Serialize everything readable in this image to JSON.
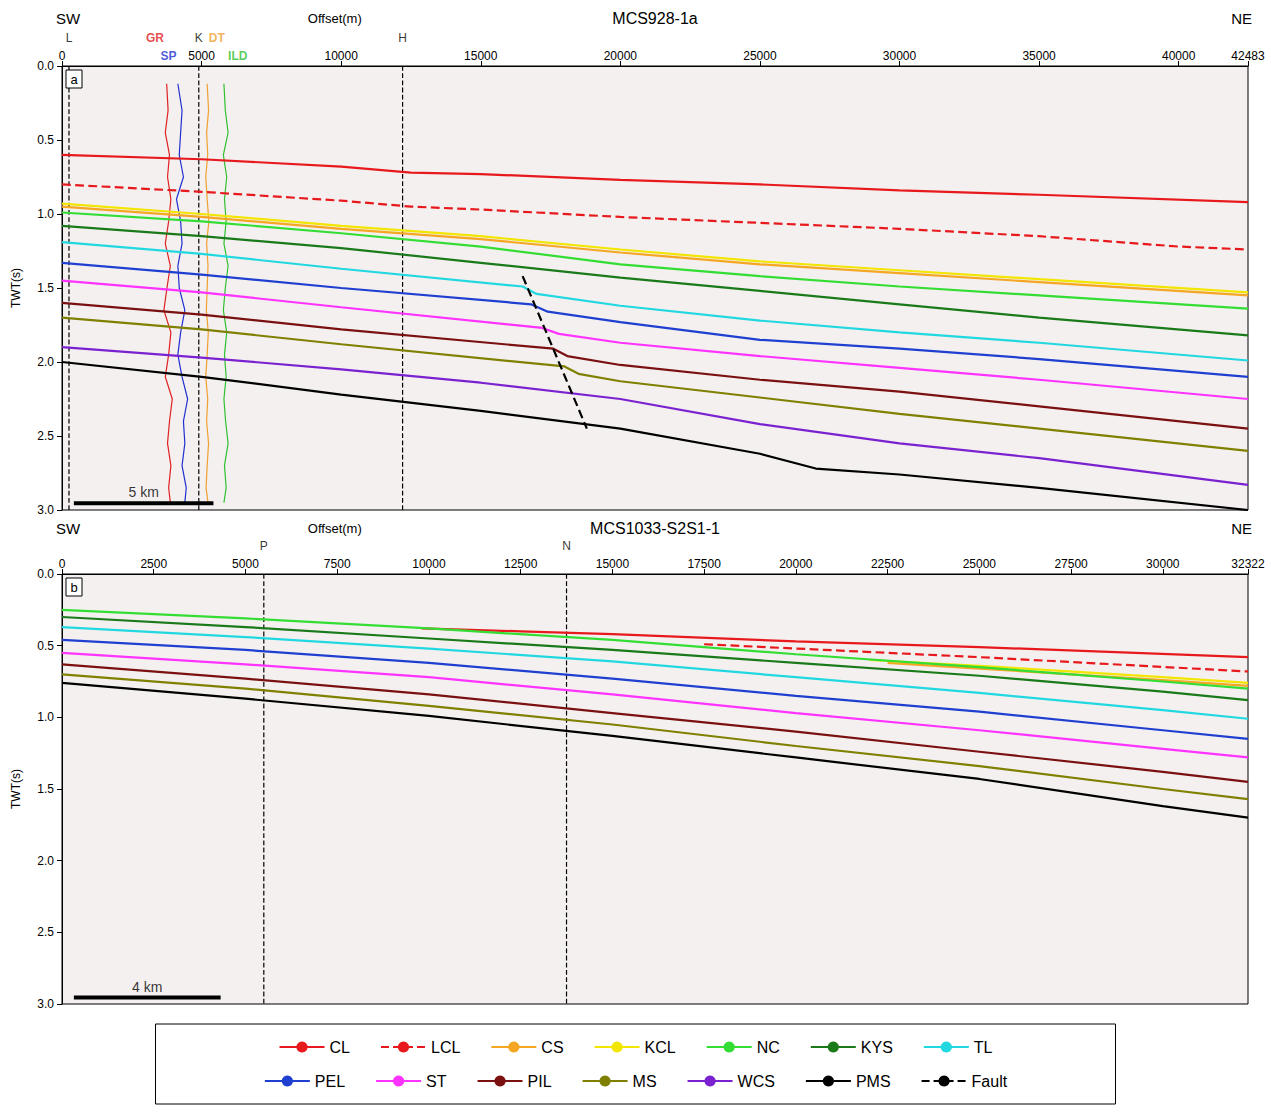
{
  "chart_data": [
    {
      "type": "line",
      "title": "MCS928-1a",
      "panel": "a",
      "x_label": "Offset(m)",
      "y_label": "TWT(s)",
      "end_labels": [
        "SW",
        "NE"
      ],
      "xlim": [
        0,
        42483
      ],
      "xticks": [
        0,
        5000,
        10000,
        15000,
        20000,
        25000,
        30000,
        35000,
        40000,
        42483
      ],
      "ylim": [
        0,
        3
      ],
      "yticks": [
        {
          "value": 0,
          "label": "0.0"
        },
        0.5,
        {
          "value": 1,
          "label": "1.0"
        },
        1.5,
        {
          "value": 2,
          "label": "2.0"
        },
        2.5,
        {
          "value": 3,
          "label": "3.0"
        }
      ],
      "grid": false,
      "legend": "bottom",
      "wells": [
        {
          "name": "L",
          "x": 250
        },
        {
          "name": "K",
          "x": 4900
        },
        {
          "name": "H",
          "x": 12200
        }
      ],
      "logs": [
        {
          "name": "GR",
          "color": "#e02020",
          "x": [
            3750,
            3800,
            3700,
            3850,
            3780,
            3900,
            3820,
            3700,
            3880,
            3760,
            3650,
            3900,
            3820,
            3700,
            3950,
            3850,
            3780,
            3900,
            3820,
            3880
          ],
          "values": [
            0.12,
            0.3,
            0.45,
            0.6,
            0.75,
            0.9,
            1.05,
            1.2,
            1.35,
            1.5,
            1.65,
            1.8,
            1.95,
            2.1,
            2.25,
            2.4,
            2.55,
            2.7,
            2.85,
            2.95
          ]
        },
        {
          "name": "SP",
          "color": "#2030d0",
          "x": [
            4150,
            4300,
            4250,
            4200,
            4350,
            4100,
            4250,
            4300,
            4150,
            4200,
            4400,
            4250,
            4150,
            4300,
            4500,
            4350,
            4400,
            4300,
            4450,
            4400
          ],
          "values": [
            0.12,
            0.3,
            0.45,
            0.6,
            0.75,
            0.9,
            1.05,
            1.2,
            1.35,
            1.5,
            1.65,
            1.8,
            1.95,
            2.1,
            2.25,
            2.4,
            2.55,
            2.7,
            2.85,
            2.95
          ]
        },
        {
          "name": "DT",
          "color": "#f0a030",
          "x": [
            5200,
            5250,
            5180,
            5220,
            5150,
            5200,
            5260,
            5180,
            5230,
            5200,
            5170,
            5240,
            5200,
            5150,
            5220,
            5180,
            5250,
            5200,
            5160,
            5230
          ],
          "values": [
            0.12,
            0.3,
            0.45,
            0.6,
            0.75,
            0.9,
            1.05,
            1.2,
            1.35,
            1.5,
            1.65,
            1.8,
            1.95,
            2.1,
            2.25,
            2.4,
            2.55,
            2.7,
            2.85,
            2.95
          ]
        },
        {
          "name": "ILD",
          "color": "#30c030",
          "x": [
            5800,
            5850,
            5950,
            5780,
            5900,
            5820,
            5880,
            5800,
            5950,
            5850,
            5780,
            5900,
            5820,
            5880,
            5800,
            5860,
            5950,
            5820,
            5880,
            5800
          ],
          "values": [
            0.12,
            0.3,
            0.45,
            0.6,
            0.75,
            0.9,
            1.05,
            1.2,
            1.35,
            1.5,
            1.65,
            1.8,
            1.95,
            2.1,
            2.25,
            2.4,
            2.55,
            2.7,
            2.85,
            2.95
          ]
        }
      ],
      "scale_bar": {
        "length": 5000,
        "label": "5 km"
      },
      "series": [
        {
          "name": "CL",
          "color": "#e8191c",
          "line_style": "solid",
          "x": [
            0,
            5000,
            10000,
            12500,
            15000,
            20000,
            25000,
            30000,
            35000,
            42483
          ],
          "values": [
            0.6,
            0.63,
            0.68,
            0.72,
            0.73,
            0.77,
            0.8,
            0.84,
            0.87,
            0.92
          ]
        },
        {
          "name": "LCL",
          "color": "#e8191c",
          "line_style": "dashed",
          "x": [
            0,
            5000,
            10000,
            12500,
            15000,
            20000,
            25000,
            30000,
            35000,
            40000,
            42483
          ],
          "values": [
            0.8,
            0.85,
            0.91,
            0.95,
            0.97,
            1.02,
            1.06,
            1.1,
            1.15,
            1.22,
            1.24
          ]
        },
        {
          "name": "CS",
          "color": "#f5a623",
          "line_style": "solid",
          "x": [
            0,
            5000,
            10000,
            15000,
            20000,
            25000,
            30000,
            35000,
            42483
          ],
          "values": [
            0.95,
            1.02,
            1.1,
            1.17,
            1.26,
            1.34,
            1.4,
            1.46,
            1.55
          ]
        },
        {
          "name": "KCL",
          "color": "#f2e600",
          "line_style": "solid",
          "x": [
            0,
            5000,
            10000,
            15000,
            20000,
            25000,
            30000,
            35000,
            42483
          ],
          "values": [
            0.93,
            1.0,
            1.08,
            1.15,
            1.24,
            1.32,
            1.38,
            1.44,
            1.53
          ]
        },
        {
          "name": "NC",
          "color": "#33dd33",
          "line_style": "solid",
          "x": [
            0,
            5000,
            10000,
            15000,
            20000,
            25000,
            30000,
            35000,
            42483
          ],
          "values": [
            0.99,
            1.05,
            1.13,
            1.22,
            1.34,
            1.42,
            1.49,
            1.55,
            1.64
          ]
        },
        {
          "name": "KYS",
          "color": "#1a7a1a",
          "line_style": "solid",
          "x": [
            0,
            5000,
            10000,
            15000,
            20000,
            25000,
            30000,
            35000,
            42483
          ],
          "values": [
            1.08,
            1.15,
            1.23,
            1.33,
            1.43,
            1.52,
            1.61,
            1.7,
            1.82
          ]
        },
        {
          "name": "TL",
          "color": "#22d8e0",
          "line_style": "solid",
          "x": [
            0,
            5000,
            10000,
            16500,
            17000,
            20000,
            25000,
            30000,
            35000,
            42483
          ],
          "values": [
            1.19,
            1.27,
            1.37,
            1.49,
            1.54,
            1.62,
            1.72,
            1.8,
            1.87,
            1.99
          ]
        },
        {
          "name": "PEL",
          "color": "#1f3fd0",
          "line_style": "solid",
          "x": [
            0,
            5000,
            10000,
            16800,
            17400,
            20000,
            25000,
            30000,
            35000,
            42483
          ],
          "values": [
            1.33,
            1.41,
            1.5,
            1.61,
            1.66,
            1.73,
            1.85,
            1.91,
            1.98,
            2.1
          ]
        },
        {
          "name": "ST",
          "color": "#ff33ff",
          "line_style": "solid",
          "x": [
            0,
            5000,
            10000,
            17200,
            17800,
            20000,
            25000,
            30000,
            35000,
            42483
          ],
          "values": [
            1.45,
            1.53,
            1.63,
            1.77,
            1.81,
            1.87,
            1.96,
            2.04,
            2.12,
            2.25
          ]
        },
        {
          "name": "PIL",
          "color": "#7a1010",
          "line_style": "solid",
          "x": [
            0,
            5000,
            10000,
            17600,
            18100,
            20000,
            25000,
            30000,
            35000,
            42483
          ],
          "values": [
            1.6,
            1.68,
            1.78,
            1.91,
            1.96,
            2.02,
            2.12,
            2.2,
            2.3,
            2.45
          ]
        },
        {
          "name": "MS",
          "color": "#808000",
          "line_style": "solid",
          "x": [
            0,
            5000,
            10000,
            18000,
            18500,
            20000,
            25000,
            30000,
            35000,
            42483
          ],
          "values": [
            1.7,
            1.78,
            1.88,
            2.03,
            2.08,
            2.13,
            2.24,
            2.35,
            2.45,
            2.6
          ]
        },
        {
          "name": "WCS",
          "color": "#7a22d0",
          "line_style": "solid",
          "x": [
            0,
            5000,
            10000,
            15000,
            20000,
            25000,
            30000,
            35000,
            42483
          ],
          "values": [
            1.9,
            1.97,
            2.05,
            2.14,
            2.25,
            2.42,
            2.55,
            2.65,
            2.83
          ]
        },
        {
          "name": "PMS",
          "color": "#000000",
          "line_style": "solid",
          "x": [
            0,
            5000,
            10000,
            15000,
            20000,
            25000,
            27000,
            30000,
            35000,
            42483
          ],
          "values": [
            2.0,
            2.1,
            2.22,
            2.33,
            2.45,
            2.62,
            2.72,
            2.76,
            2.85,
            3.0
          ]
        },
        {
          "name": "Fault",
          "color": "#000000",
          "line_style": "dashed",
          "x": [
            16500,
            18800
          ],
          "values": [
            1.42,
            2.45
          ]
        }
      ]
    },
    {
      "type": "line",
      "title": "MCS1033-S2S1-1",
      "panel": "b",
      "x_label": "Offset(m)",
      "y_label": "TWT(s)",
      "end_labels": [
        "SW",
        "NE"
      ],
      "xlim": [
        0,
        32322
      ],
      "xticks": [
        0,
        2500,
        5000,
        7500,
        10000,
        12500,
        15000,
        17500,
        20000,
        22500,
        25000,
        27500,
        30000,
        32322
      ],
      "ylim": [
        0,
        3
      ],
      "yticks": [
        {
          "value": 0,
          "label": "0.0"
        },
        0.5,
        {
          "value": 1,
          "label": "1.0"
        },
        1.5,
        {
          "value": 2,
          "label": "2.0"
        },
        2.5,
        {
          "value": 3,
          "label": "3.0"
        }
      ],
      "grid": false,
      "legend": "bottom",
      "wells": [
        {
          "name": "P",
          "x": 5500
        },
        {
          "name": "N",
          "x": 13750
        }
      ],
      "logs": [],
      "scale_bar": {
        "length": 4000,
        "label": "4 km"
      },
      "series": [
        {
          "name": "CL",
          "color": "#e8191c",
          "line_style": "solid",
          "x": [
            9800,
            12500,
            15000,
            20000,
            25000,
            32322
          ],
          "values": [
            0.38,
            0.4,
            0.42,
            0.47,
            0.51,
            0.58
          ]
        },
        {
          "name": "LCL",
          "color": "#e8191c",
          "line_style": "dashed",
          "x": [
            17500,
            20000,
            25000,
            32322
          ],
          "values": [
            0.49,
            0.52,
            0.58,
            0.68
          ]
        },
        {
          "name": "CS",
          "color": "#f5a623",
          "line_style": "solid",
          "x": [
            22500,
            25000,
            30000,
            32322
          ],
          "values": [
            0.62,
            0.66,
            0.74,
            0.78
          ]
        },
        {
          "name": "KCL",
          "color": "#f2e600",
          "line_style": "solid",
          "x": [
            22000,
            25000,
            30000,
            32322
          ],
          "values": [
            0.6,
            0.64,
            0.72,
            0.76
          ]
        },
        {
          "name": "NC",
          "color": "#33dd33",
          "line_style": "solid",
          "x": [
            0,
            5000,
            10000,
            15000,
            20000,
            25000,
            30000,
            32322
          ],
          "values": [
            0.25,
            0.31,
            0.38,
            0.46,
            0.56,
            0.65,
            0.75,
            0.8
          ]
        },
        {
          "name": "KYS",
          "color": "#1a7a1a",
          "line_style": "solid",
          "x": [
            0,
            5000,
            10000,
            15000,
            20000,
            25000,
            30000,
            32322
          ],
          "values": [
            0.3,
            0.37,
            0.45,
            0.53,
            0.62,
            0.71,
            0.82,
            0.88
          ]
        },
        {
          "name": "TL",
          "color": "#22d8e0",
          "line_style": "solid",
          "x": [
            0,
            5000,
            10000,
            15000,
            20000,
            25000,
            30000,
            32322
          ],
          "values": [
            0.37,
            0.44,
            0.52,
            0.61,
            0.72,
            0.83,
            0.95,
            1.01
          ]
        },
        {
          "name": "PEL",
          "color": "#1f3fd0",
          "line_style": "solid",
          "x": [
            0,
            5000,
            10000,
            15000,
            20000,
            25000,
            30000,
            32322
          ],
          "values": [
            0.46,
            0.53,
            0.62,
            0.73,
            0.85,
            0.96,
            1.09,
            1.15
          ]
        },
        {
          "name": "ST",
          "color": "#ff33ff",
          "line_style": "solid",
          "x": [
            0,
            5000,
            10000,
            15000,
            20000,
            25000,
            30000,
            32322
          ],
          "values": [
            0.55,
            0.63,
            0.72,
            0.84,
            0.97,
            1.09,
            1.22,
            1.28
          ]
        },
        {
          "name": "PIL",
          "color": "#7a1010",
          "line_style": "solid",
          "x": [
            0,
            5000,
            10000,
            15000,
            20000,
            25000,
            30000,
            32322
          ],
          "values": [
            0.63,
            0.73,
            0.84,
            0.97,
            1.1,
            1.24,
            1.38,
            1.45
          ]
        },
        {
          "name": "MS",
          "color": "#808000",
          "line_style": "solid",
          "x": [
            0,
            5000,
            10000,
            15000,
            20000,
            25000,
            30000,
            32322
          ],
          "values": [
            0.7,
            0.8,
            0.92,
            1.05,
            1.2,
            1.34,
            1.5,
            1.57
          ]
        },
        {
          "name": "PMS",
          "color": "#000000",
          "line_style": "solid",
          "x": [
            0,
            5000,
            10000,
            15000,
            20000,
            25000,
            30000,
            32322
          ],
          "values": [
            0.76,
            0.87,
            0.99,
            1.13,
            1.28,
            1.43,
            1.62,
            1.7
          ]
        }
      ]
    }
  ]
}
